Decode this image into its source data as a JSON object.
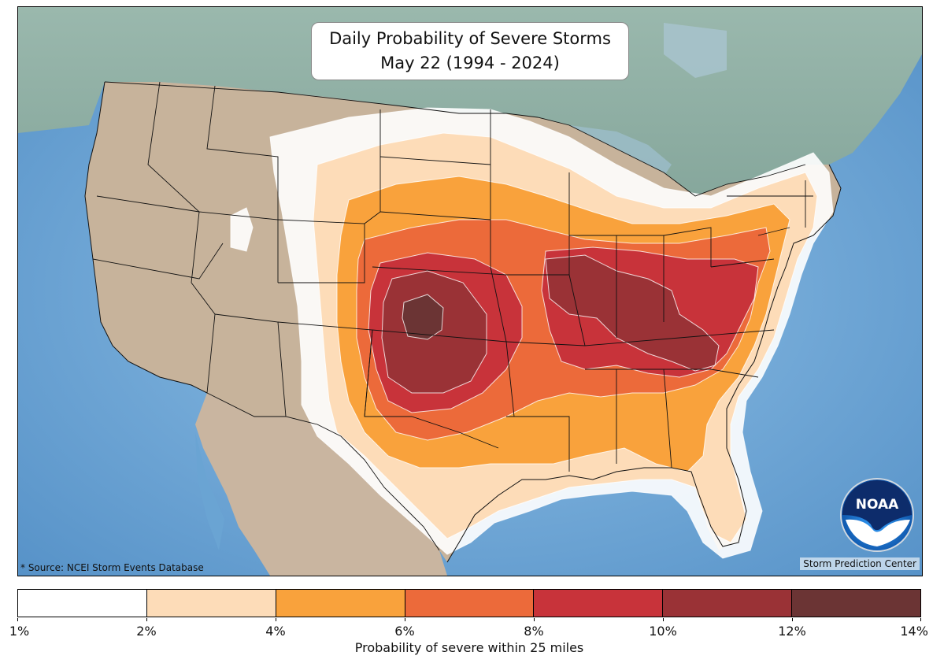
{
  "title": {
    "line1": "Daily Probability of Severe Storms",
    "line2": "May 22 (1994 - 2024)"
  },
  "source_note": "* Source: NCEI Storm Events Database",
  "attribution": "Storm Prediction Center",
  "logo": {
    "icon": "noaa-logo",
    "text": "NOAA"
  },
  "legend": {
    "label": "Probability of severe within 25 miles",
    "ticks": [
      "1%",
      "2%",
      "4%",
      "6%",
      "8%",
      "10%",
      "12%",
      "14%"
    ],
    "bins": [
      {
        "range": "1-2%",
        "color": "#ffffff"
      },
      {
        "range": "2-4%",
        "color": "#fddcb8"
      },
      {
        "range": "4-6%",
        "color": "#f9a23c"
      },
      {
        "range": "6-8%",
        "color": "#ec6a3a"
      },
      {
        "range": "8-10%",
        "color": "#c8333a"
      },
      {
        "range": "10-12%",
        "color": "#9a3236"
      },
      {
        "range": "12-14%",
        "color": "#6b3434"
      }
    ]
  },
  "map": {
    "region": "Contiguous United States",
    "colors": {
      "ocean": "#6aa4d3",
      "land_us": "#c4b19a",
      "land_canada": "#8eaea5",
      "borders": "#111111",
      "contour_line": "#ffffff"
    }
  }
}
